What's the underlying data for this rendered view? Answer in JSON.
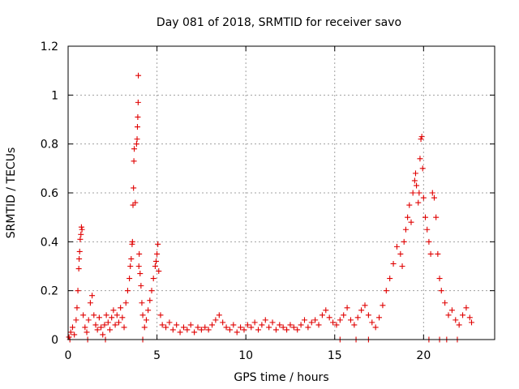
{
  "chart_data": {
    "type": "scatter",
    "title": "Day 081 of 2018, SRMTID for receiver savo",
    "xlabel": "GPS time / hours",
    "ylabel": "SRMTID / TECUs",
    "xlim": [
      0,
      24
    ],
    "ylim": [
      0,
      1.2
    ],
    "xticks": [
      0,
      5,
      10,
      15,
      20
    ],
    "xtick_labels": [
      "0",
      "5",
      "10",
      "15",
      "20"
    ],
    "yticks": [
      0,
      0.2,
      0.4,
      0.6,
      0.8,
      1,
      1.2
    ],
    "ytick_labels": [
      "0",
      "0.2",
      "0.4",
      "0.6",
      "0.8",
      "1",
      "1.2"
    ],
    "grid": true,
    "legend": "none",
    "marker": "+",
    "color": "#e00000",
    "series": [
      {
        "name": "SRMTID",
        "points": [
          [
            0.05,
            0.01
          ],
          [
            0.15,
            0.03
          ],
          [
            0.25,
            0.05
          ],
          [
            0.35,
            0.02
          ],
          [
            0.45,
            0.08
          ],
          [
            0.5,
            0.13
          ],
          [
            0.55,
            0.2
          ],
          [
            0.6,
            0.29
          ],
          [
            0.62,
            0.33
          ],
          [
            0.65,
            0.36
          ],
          [
            0.68,
            0.41
          ],
          [
            0.72,
            0.43
          ],
          [
            0.75,
            0.46
          ],
          [
            0.78,
            0.45
          ],
          [
            0.85,
            0.1
          ],
          [
            0.95,
            0.05
          ],
          [
            1.05,
            0.03
          ],
          [
            1.15,
            0.08
          ],
          [
            1.25,
            0.15
          ],
          [
            1.35,
            0.18
          ],
          [
            1.45,
            0.1
          ],
          [
            1.55,
            0.06
          ],
          [
            1.65,
            0.04
          ],
          [
            1.75,
            0.09
          ],
          [
            1.85,
            0.05
          ],
          [
            1.95,
            0.02
          ],
          [
            2.05,
            0.06
          ],
          [
            2.15,
            0.1
          ],
          [
            2.25,
            0.07
          ],
          [
            2.35,
            0.04
          ],
          [
            2.45,
            0.09
          ],
          [
            2.55,
            0.12
          ],
          [
            2.65,
            0.06
          ],
          [
            2.75,
            0.1
          ],
          [
            2.85,
            0.07
          ],
          [
            2.95,
            0.13
          ],
          [
            3.05,
            0.09
          ],
          [
            3.15,
            0.05
          ],
          [
            3.25,
            0.15
          ],
          [
            3.35,
            0.2
          ],
          [
            3.45,
            0.25
          ],
          [
            3.5,
            0.3
          ],
          [
            3.55,
            0.33
          ],
          [
            3.6,
            0.39
          ],
          [
            3.62,
            0.4
          ],
          [
            3.65,
            0.55
          ],
          [
            3.68,
            0.62
          ],
          [
            3.7,
            0.73
          ],
          [
            3.72,
            0.78
          ],
          [
            3.78,
            0.56
          ],
          [
            3.85,
            0.8
          ],
          [
            3.88,
            0.82
          ],
          [
            3.9,
            0.87
          ],
          [
            3.92,
            0.91
          ],
          [
            3.94,
            0.97
          ],
          [
            3.95,
            1.08
          ],
          [
            3.98,
            0.3
          ],
          [
            4.0,
            0.35
          ],
          [
            4.05,
            0.27
          ],
          [
            4.1,
            0.22
          ],
          [
            4.15,
            0.15
          ],
          [
            4.2,
            0.1
          ],
          [
            4.3,
            0.05
          ],
          [
            4.4,
            0.08
          ],
          [
            4.5,
            0.12
          ],
          [
            4.6,
            0.16
          ],
          [
            4.7,
            0.2
          ],
          [
            4.8,
            0.25
          ],
          [
            4.9,
            0.3
          ],
          [
            4.95,
            0.32
          ],
          [
            5.0,
            0.35
          ],
          [
            5.05,
            0.39
          ],
          [
            5.1,
            0.28
          ],
          [
            5.2,
            0.1
          ],
          [
            5.3,
            0.06
          ],
          [
            5.5,
            0.05
          ],
          [
            5.7,
            0.07
          ],
          [
            5.9,
            0.04
          ],
          [
            6.1,
            0.06
          ],
          [
            6.3,
            0.03
          ],
          [
            6.5,
            0.05
          ],
          [
            6.7,
            0.04
          ],
          [
            6.9,
            0.06
          ],
          [
            7.1,
            0.03
          ],
          [
            7.3,
            0.05
          ],
          [
            7.5,
            0.04
          ],
          [
            7.7,
            0.05
          ],
          [
            7.9,
            0.04
          ],
          [
            8.1,
            0.06
          ],
          [
            8.3,
            0.08
          ],
          [
            8.5,
            0.1
          ],
          [
            8.7,
            0.07
          ],
          [
            8.9,
            0.05
          ],
          [
            9.1,
            0.04
          ],
          [
            9.3,
            0.06
          ],
          [
            9.5,
            0.03
          ],
          [
            9.7,
            0.05
          ],
          [
            9.9,
            0.04
          ],
          [
            10.1,
            0.06
          ],
          [
            10.3,
            0.05
          ],
          [
            10.5,
            0.07
          ],
          [
            10.7,
            0.04
          ],
          [
            10.9,
            0.06
          ],
          [
            11.1,
            0.08
          ],
          [
            11.3,
            0.05
          ],
          [
            11.5,
            0.07
          ],
          [
            11.7,
            0.04
          ],
          [
            11.9,
            0.06
          ],
          [
            12.1,
            0.05
          ],
          [
            12.3,
            0.04
          ],
          [
            12.5,
            0.06
          ],
          [
            12.7,
            0.05
          ],
          [
            12.9,
            0.04
          ],
          [
            13.1,
            0.06
          ],
          [
            13.3,
            0.08
          ],
          [
            13.5,
            0.05
          ],
          [
            13.7,
            0.07
          ],
          [
            13.9,
            0.08
          ],
          [
            14.1,
            0.06
          ],
          [
            14.3,
            0.1
          ],
          [
            14.5,
            0.12
          ],
          [
            14.7,
            0.09
          ],
          [
            14.9,
            0.07
          ],
          [
            15.1,
            0.06
          ],
          [
            15.3,
            0.08
          ],
          [
            15.5,
            0.1
          ],
          [
            15.7,
            0.13
          ],
          [
            15.9,
            0.08
          ],
          [
            16.1,
            0.06
          ],
          [
            16.3,
            0.09
          ],
          [
            16.5,
            0.12
          ],
          [
            16.7,
            0.14
          ],
          [
            16.9,
            0.1
          ],
          [
            17.1,
            0.07
          ],
          [
            17.3,
            0.05
          ],
          [
            17.5,
            0.09
          ],
          [
            17.7,
            0.14
          ],
          [
            17.9,
            0.2
          ],
          [
            18.1,
            0.25
          ],
          [
            18.3,
            0.31
          ],
          [
            18.5,
            0.38
          ],
          [
            18.7,
            0.35
          ],
          [
            18.8,
            0.3
          ],
          [
            18.9,
            0.4
          ],
          [
            19.0,
            0.45
          ],
          [
            19.1,
            0.5
          ],
          [
            19.2,
            0.55
          ],
          [
            19.3,
            0.48
          ],
          [
            19.4,
            0.6
          ],
          [
            19.5,
            0.65
          ],
          [
            19.55,
            0.68
          ],
          [
            19.6,
            0.63
          ],
          [
            19.7,
            0.56
          ],
          [
            19.75,
            0.6
          ],
          [
            19.8,
            0.74
          ],
          [
            19.85,
            0.82
          ],
          [
            19.9,
            0.83
          ],
          [
            19.95,
            0.7
          ],
          [
            20.0,
            0.58
          ],
          [
            20.1,
            0.5
          ],
          [
            20.2,
            0.45
          ],
          [
            20.3,
            0.4
          ],
          [
            20.4,
            0.35
          ],
          [
            20.5,
            0.6
          ],
          [
            20.6,
            0.58
          ],
          [
            20.7,
            0.5
          ],
          [
            20.8,
            0.35
          ],
          [
            20.9,
            0.25
          ],
          [
            21.0,
            0.2
          ],
          [
            21.2,
            0.15
          ],
          [
            21.4,
            0.1
          ],
          [
            21.6,
            0.12
          ],
          [
            21.8,
            0.08
          ],
          [
            22.0,
            0.06
          ],
          [
            22.2,
            0.1
          ],
          [
            22.4,
            0.13
          ],
          [
            22.6,
            0.09
          ],
          [
            22.7,
            0.07
          ],
          [
            0.1,
            0.0
          ],
          [
            1.1,
            0.0
          ],
          [
            2.1,
            0.0
          ],
          [
            4.2,
            0.0
          ],
          [
            15.3,
            0.0
          ],
          [
            16.2,
            0.0
          ],
          [
            16.9,
            0.0
          ],
          [
            20.3,
            0.0
          ],
          [
            20.9,
            0.0
          ],
          [
            21.3,
            0.0
          ],
          [
            21.9,
            0.0
          ]
        ]
      }
    ]
  }
}
